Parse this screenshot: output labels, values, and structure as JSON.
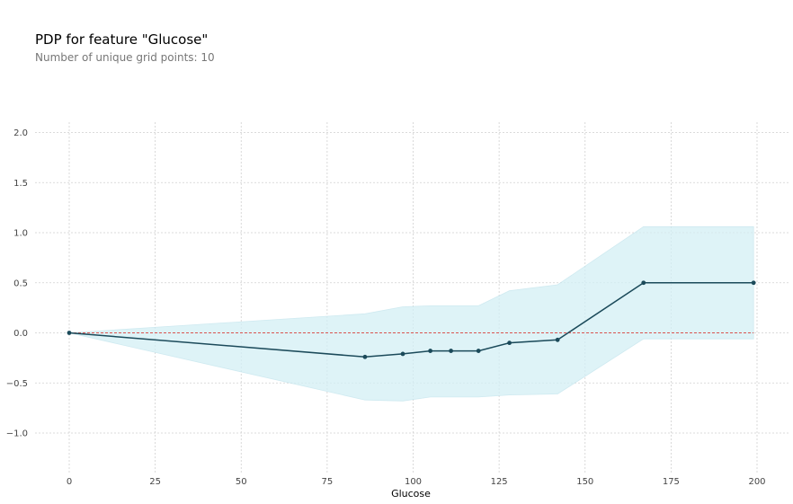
{
  "chart_data": {
    "type": "line",
    "title": "PDP for feature \"Glucose\"",
    "subtitle": "Number of unique grid points: 10",
    "xlabel": "Glucose",
    "ylabel": "",
    "xlim": [
      -10,
      210
    ],
    "ylim": [
      -1.4,
      2.1
    ],
    "xticks": [
      0,
      25,
      50,
      75,
      100,
      125,
      150,
      175,
      200
    ],
    "yticks": [
      2.0,
      1.5,
      1.0,
      0.5,
      0.0,
      -0.5,
      -1.0
    ],
    "xtick_labels": [
      "0",
      "25",
      "50",
      "75",
      "100",
      "125",
      "150",
      "175",
      "200"
    ],
    "ytick_labels": [
      "2.0",
      "1.5",
      "1.0",
      "0.5",
      "0.0",
      "−0.5",
      "−1.0"
    ],
    "grid": true,
    "series": [
      {
        "x": [
          0,
          86,
          97,
          105,
          111,
          119,
          128,
          142,
          167,
          199
        ],
        "y": [
          0.0,
          -0.24,
          -0.21,
          -0.18,
          -0.18,
          -0.18,
          -0.1,
          -0.07,
          0.5,
          0.5
        ],
        "upper": [
          0.0,
          0.19,
          0.26,
          0.27,
          0.27,
          0.27,
          0.42,
          0.48,
          1.06,
          1.06
        ],
        "lower": [
          0.0,
          -0.67,
          -0.68,
          -0.64,
          -0.64,
          -0.64,
          -0.62,
          -0.61,
          -0.06,
          -0.06
        ]
      }
    ],
    "reference_line": 0.0,
    "colors": {
      "line": "#1b4a5a",
      "band": "#d3eff5",
      "reference": "#d9534f",
      "grid": "#d0d0d0"
    }
  }
}
